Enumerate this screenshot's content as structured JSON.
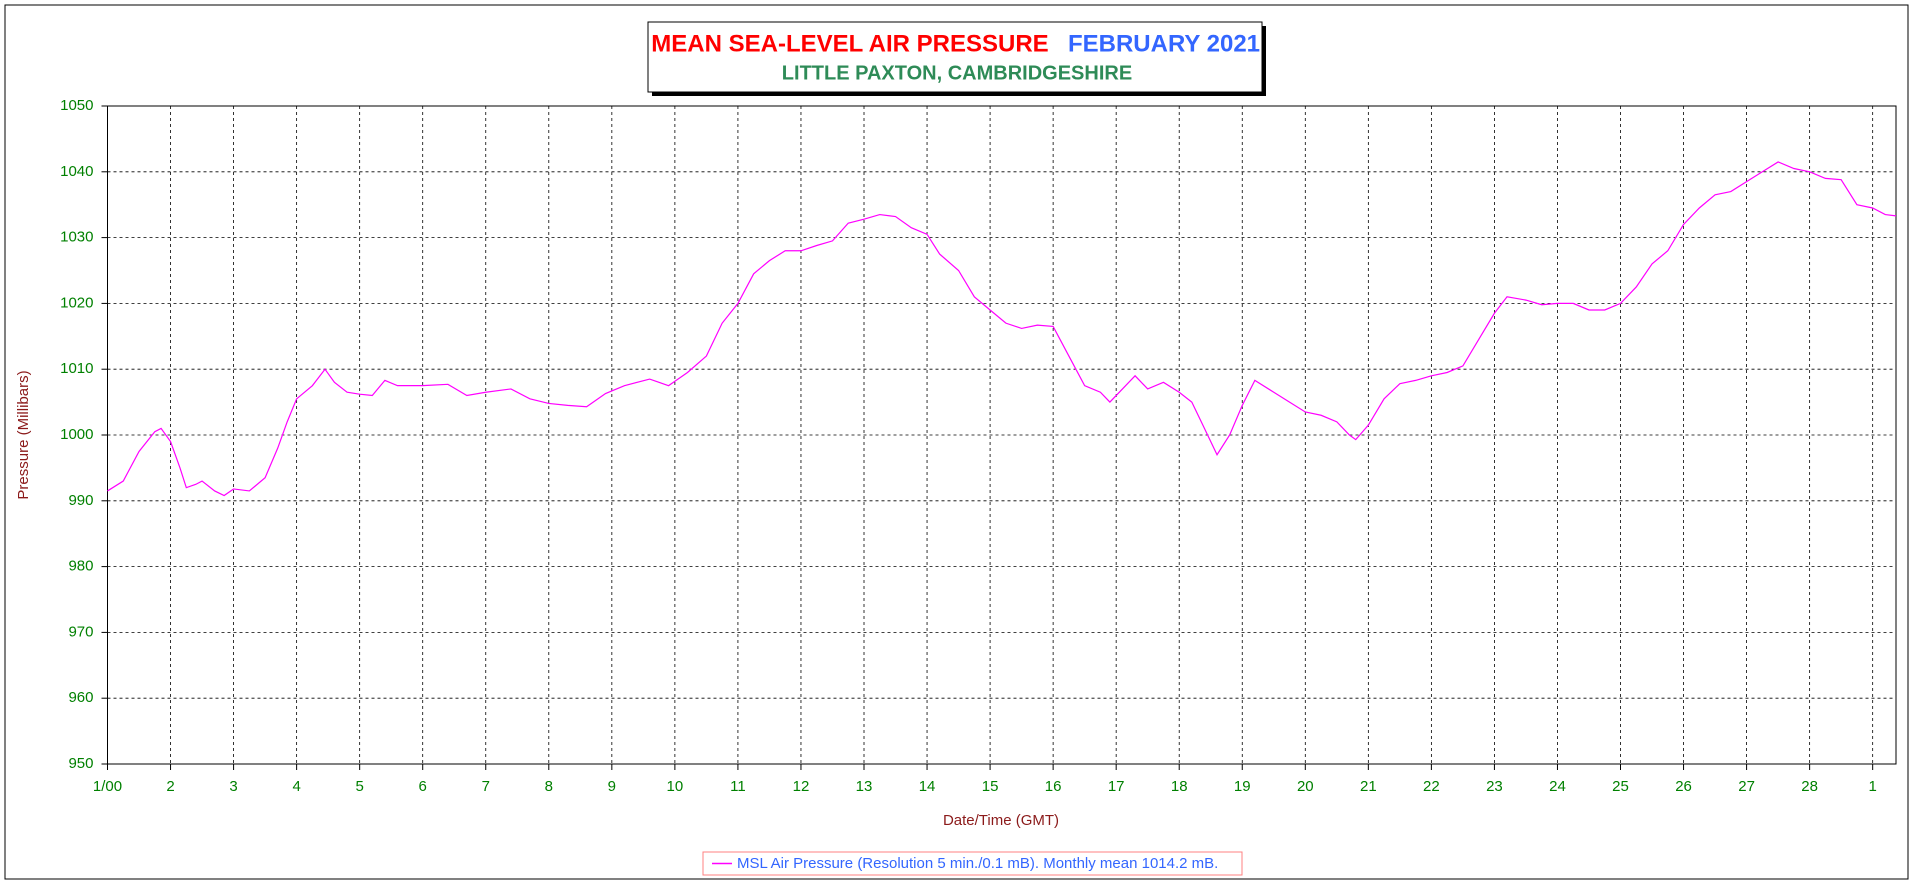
{
  "chart_data": {
    "type": "line",
    "title": "MEAN SEA-LEVEL AIR PRESSURE",
    "title_date": "FEBRUARY 2021",
    "subtitle": "LITTLE PAXTON, CAMBRIDGESHIRE",
    "xlabel": "Date/Time (GMT)",
    "ylabel": "Pressure (Millibars)",
    "xlim": [
      0,
      28.37
    ],
    "ylim": [
      950,
      1050
    ],
    "yticks": [
      950,
      960,
      970,
      980,
      990,
      1000,
      1010,
      1020,
      1030,
      1040,
      1050
    ],
    "xticks": [
      {
        "value": 0,
        "label": "1/00"
      },
      {
        "value": 1,
        "label": "2"
      },
      {
        "value": 2,
        "label": "3"
      },
      {
        "value": 3,
        "label": "4"
      },
      {
        "value": 4,
        "label": "5"
      },
      {
        "value": 5,
        "label": "6"
      },
      {
        "value": 6,
        "label": "7"
      },
      {
        "value": 7,
        "label": "8"
      },
      {
        "value": 8,
        "label": "9"
      },
      {
        "value": 9,
        "label": "10"
      },
      {
        "value": 10,
        "label": "11"
      },
      {
        "value": 11,
        "label": "12"
      },
      {
        "value": 12,
        "label": "13"
      },
      {
        "value": 13,
        "label": "14"
      },
      {
        "value": 14,
        "label": "15"
      },
      {
        "value": 15,
        "label": "16"
      },
      {
        "value": 16,
        "label": "17"
      },
      {
        "value": 17,
        "label": "18"
      },
      {
        "value": 18,
        "label": "19"
      },
      {
        "value": 19,
        "label": "20"
      },
      {
        "value": 20,
        "label": "21"
      },
      {
        "value": 21,
        "label": "22"
      },
      {
        "value": 22,
        "label": "23"
      },
      {
        "value": 23,
        "label": "24"
      },
      {
        "value": 24,
        "label": "25"
      },
      {
        "value": 25,
        "label": "26"
      },
      {
        "value": 26,
        "label": "27"
      },
      {
        "value": 27,
        "label": "28"
      },
      {
        "value": 28,
        "label": "1"
      }
    ],
    "grid": true,
    "legend": "bottom",
    "x": [
      0,
      0.25,
      0.5,
      0.75,
      0.85,
      1.0,
      1.15,
      1.25,
      1.4,
      1.5,
      1.7,
      1.85,
      2.0,
      2.25,
      2.5,
      2.7,
      2.85,
      3.0,
      3.25,
      3.45,
      3.6,
      3.8,
      4.0,
      4.2,
      4.4,
      4.6,
      5.0,
      5.4,
      5.7,
      6.0,
      6.4,
      6.7,
      7.0,
      7.3,
      7.6,
      7.9,
      8.2,
      8.6,
      8.9,
      9.2,
      9.5,
      9.75,
      10.0,
      10.25,
      10.5,
      10.75,
      11.0,
      11.25,
      11.5,
      11.75,
      12.0,
      12.25,
      12.5,
      12.75,
      13.0,
      13.2,
      13.5,
      13.75,
      14.0,
      14.25,
      14.5,
      14.75,
      15.0,
      15.25,
      15.5,
      15.75,
      15.9,
      16.1,
      16.3,
      16.5,
      16.75,
      17.0,
      17.2,
      17.4,
      17.6,
      17.8,
      18.0,
      18.2,
      18.5,
      18.75,
      19.0,
      19.25,
      19.5,
      19.7,
      19.8,
      20.0,
      20.25,
      20.5,
      20.75,
      21.0,
      21.25,
      21.5,
      21.75,
      22.0,
      22.2,
      22.5,
      22.75,
      23.0,
      23.25,
      23.5,
      23.75,
      24.0,
      24.25,
      24.5,
      24.75,
      25.0,
      25.25,
      25.5,
      25.75,
      26.0,
      26.25,
      26.5,
      26.75,
      27.0,
      27.25,
      27.5,
      27.75,
      28.0,
      28.2,
      28.37
    ],
    "series": [
      {
        "name": "MSL Air Pressure (Resolution 5 min./0.1 mB). Monthly mean 1014.2 mB.",
        "color": "#ff00ff",
        "values": [
          991.5,
          993,
          997.5,
          1000.5,
          1001,
          999,
          995,
          992,
          992.5,
          993,
          991.5,
          990.8,
          991.8,
          991.5,
          993.5,
          998,
          1002,
          1005.5,
          1007.5,
          1010,
          1008,
          1006.5,
          1006.2,
          1006,
          1008.3,
          1007.5,
          1007.5,
          1007.7,
          1006,
          1006.5,
          1007,
          1005.5,
          1004.8,
          1004.5,
          1004.3,
          1006.3,
          1007.5,
          1008.5,
          1007.5,
          1009.5,
          1012,
          1017,
          1020,
          1024.5,
          1026.5,
          1028,
          1028,
          1028.8,
          1029.5,
          1032.2,
          1032.8,
          1033.5,
          1033.2,
          1031.5,
          1030.5,
          1027.5,
          1025,
          1021,
          1019,
          1017,
          1016.2,
          1016.7,
          1016.5,
          1012,
          1007.5,
          1006.5,
          1005,
          1007,
          1009,
          1007,
          1008,
          1006.5,
          1005,
          1001,
          997,
          1000,
          1004.5,
          1008.3,
          1006.5,
          1005,
          1003.5,
          1003,
          1002,
          1000,
          999.3,
          1001.5,
          1005.5,
          1007.8,
          1008.3,
          1009,
          1009.5,
          1010.5,
          1014.5,
          1018.5,
          1021,
          1020.5,
          1019.8,
          1020,
          1020,
          1019,
          1019,
          1020,
          1022.5,
          1026,
          1028,
          1032,
          1034.5,
          1036.5,
          1037,
          1038.5,
          1040,
          1041.5,
          1040.5,
          1040,
          1039,
          1038.8,
          1035,
          1034.5,
          1033.5,
          1033.3
        ]
      }
    ]
  }
}
